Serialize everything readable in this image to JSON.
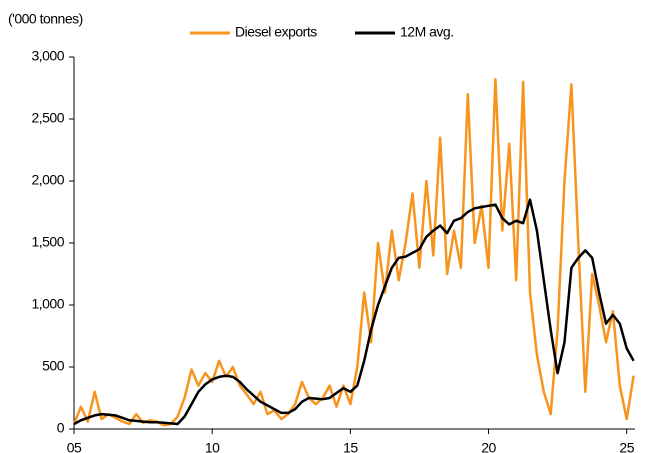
{
  "chart_data": {
    "type": "line",
    "y_axis_label": "('000 tonnes)",
    "x": [
      5.0,
      5.25,
      5.5,
      5.75,
      6.0,
      6.25,
      6.5,
      6.75,
      7.0,
      7.25,
      7.5,
      7.75,
      8.0,
      8.25,
      8.5,
      8.75,
      9.0,
      9.25,
      9.5,
      9.75,
      10.0,
      10.25,
      10.5,
      10.75,
      11.0,
      11.25,
      11.5,
      11.75,
      12.0,
      12.25,
      12.5,
      12.75,
      13.0,
      13.25,
      13.5,
      13.75,
      14.0,
      14.25,
      14.5,
      14.75,
      15.0,
      15.25,
      15.5,
      15.75,
      16.0,
      16.25,
      16.5,
      16.75,
      17.0,
      17.25,
      17.5,
      17.75,
      18.0,
      18.25,
      18.5,
      18.75,
      19.0,
      19.25,
      19.5,
      19.75,
      20.0,
      20.25,
      20.5,
      20.75,
      21.0,
      21.25,
      21.5,
      21.75,
      22.0,
      22.25,
      22.5,
      22.75,
      23.0,
      23.25,
      23.5,
      23.75,
      24.0,
      24.25,
      24.5,
      24.75,
      25.0,
      25.25
    ],
    "series": [
      {
        "name": "Diesel exports",
        "color": "#f7941d",
        "width": 2.5,
        "values": [
          40,
          180,
          60,
          300,
          80,
          120,
          90,
          60,
          40,
          120,
          50,
          70,
          60,
          30,
          40,
          100,
          250,
          480,
          350,
          450,
          380,
          550,
          420,
          500,
          350,
          280,
          200,
          300,
          120,
          150,
          80,
          120,
          200,
          380,
          250,
          200,
          250,
          350,
          180,
          350,
          200,
          500,
          1100,
          700,
          1500,
          1100,
          1600,
          1200,
          1500,
          1900,
          1300,
          2000,
          1400,
          2350,
          1250,
          1600,
          1300,
          2700,
          1500,
          1800,
          1300,
          2820,
          1600,
          2300,
          1200,
          2800,
          1100,
          600,
          300,
          120,
          800,
          2000,
          2780,
          1500,
          300,
          1250,
          1000,
          700,
          950,
          350,
          80,
          430
        ]
      },
      {
        "name": "12M avg.",
        "color": "#000000",
        "width": 2.5,
        "values": [
          40,
          70,
          90,
          110,
          120,
          115,
          110,
          90,
          70,
          65,
          60,
          55,
          55,
          50,
          45,
          40,
          100,
          200,
          300,
          360,
          400,
          420,
          430,
          420,
          380,
          320,
          270,
          220,
          190,
          160,
          130,
          130,
          160,
          220,
          250,
          245,
          240,
          250,
          290,
          330,
          300,
          350,
          550,
          800,
          1000,
          1150,
          1300,
          1380,
          1390,
          1420,
          1450,
          1550,
          1600,
          1640,
          1580,
          1680,
          1700,
          1750,
          1780,
          1790,
          1800,
          1810,
          1700,
          1650,
          1680,
          1660,
          1850,
          1600,
          1200,
          800,
          450,
          700,
          1300,
          1380,
          1440,
          1380,
          1100,
          850,
          920,
          850,
          650,
          550
        ]
      }
    ],
    "xlim": [
      5,
      25.3
    ],
    "xticks": [
      {
        "value": 5,
        "label": "05"
      },
      10,
      15,
      20,
      25
    ],
    "ylim": [
      0,
      3000
    ],
    "yticks": [
      0,
      {
        "value": 500,
        "label": "500"
      },
      {
        "value": 1000,
        "label": "1,000"
      },
      {
        "value": 1500,
        "label": "1,500"
      },
      {
        "value": 2000,
        "label": "2,000"
      },
      {
        "value": 2500,
        "label": "2,500"
      },
      {
        "value": 3000,
        "label": "3,000"
      }
    ],
    "grid": false
  }
}
